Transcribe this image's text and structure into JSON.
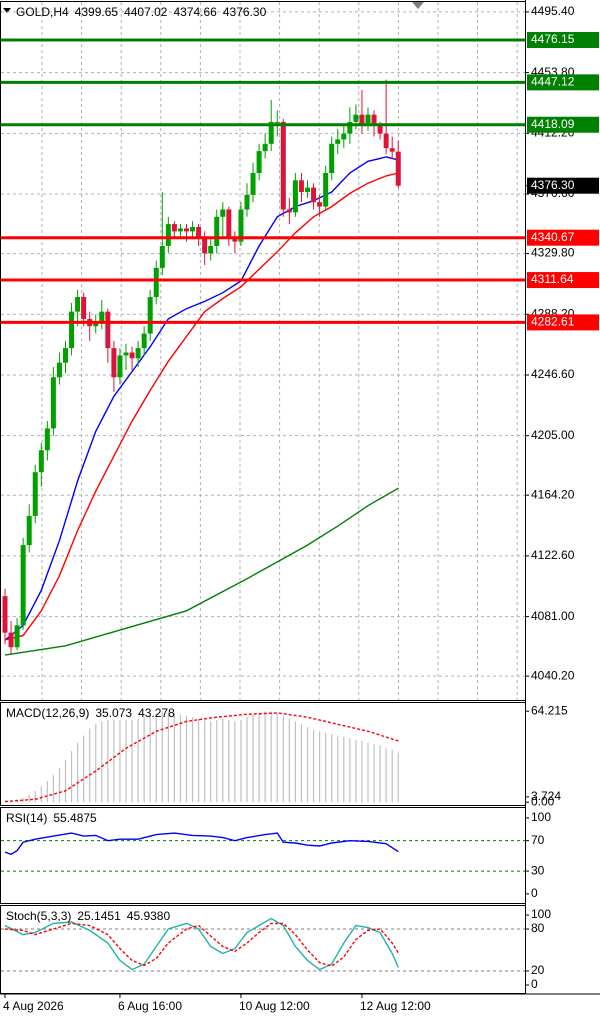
{
  "chart_data": [
    {
      "type": "candlestick",
      "title": "GOLD,H4",
      "legend_values": {
        "values": [
          4399.65,
          4407.02,
          4374.66,
          4376.3
        ],
        "value_labels": [
          "4399.65",
          "4407.02",
          "4374.66",
          "4376.30"
        ]
      },
      "categories": [
        "4 Aug 2026",
        null,
        null,
        null,
        null,
        null,
        null,
        null,
        null,
        null,
        null,
        null,
        null,
        null,
        null,
        null,
        null,
        null,
        null,
        "6 Aug 16:00",
        null,
        null,
        null,
        null,
        null,
        null,
        null,
        null,
        null,
        null,
        null,
        null,
        null,
        null,
        null,
        null,
        null,
        null,
        null,
        "10 Aug 12:00",
        null,
        null,
        null,
        null,
        null,
        null,
        null,
        null,
        null,
        null,
        null,
        null,
        null,
        null,
        null,
        null,
        null,
        null,
        null,
        "12 Aug 12:00",
        null,
        null,
        null,
        null,
        null,
        null
      ],
      "ohlc": [
        [
          4095,
          4100,
          4062,
          4070
        ],
        [
          4070,
          4078,
          4055,
          4060
        ],
        [
          4060,
          4080,
          4058,
          4075
        ],
        [
          4075,
          4135,
          4072,
          4130
        ],
        [
          4130,
          4158,
          4125,
          4150
        ],
        [
          4150,
          4185,
          4145,
          4180
        ],
        [
          4180,
          4200,
          4170,
          4195
        ],
        [
          4195,
          4215,
          4188,
          4210
        ],
        [
          4210,
          4252,
          4205,
          4245
        ],
        [
          4245,
          4262,
          4240,
          4255
        ],
        [
          4255,
          4270,
          4248,
          4265
        ],
        [
          4265,
          4296,
          4260,
          4290
        ],
        [
          4290,
          4305,
          4280,
          4300
        ],
        [
          4300,
          4303,
          4280,
          4285
        ],
        [
          4285,
          4290,
          4270,
          4280
        ],
        [
          4280,
          4288,
          4275,
          4282
        ],
        [
          4282,
          4298,
          4278,
          4290
        ],
        [
          4290,
          4292,
          4255,
          4265
        ],
        [
          4265,
          4270,
          4235,
          4245
        ],
        [
          4245,
          4265,
          4240,
          4260
        ],
        [
          4260,
          4268,
          4250,
          4262
        ],
        [
          4262,
          4266,
          4250,
          4258
        ],
        [
          4258,
          4270,
          4252,
          4265
        ],
        [
          4265,
          4280,
          4260,
          4275
        ],
        [
          4275,
          4305,
          4270,
          4300
        ],
        [
          4300,
          4325,
          4295,
          4320
        ],
        [
          4320,
          4372,
          4315,
          4335
        ],
        [
          4335,
          4355,
          4330,
          4350
        ],
        [
          4350,
          4352,
          4340,
          4345
        ],
        [
          4345,
          4350,
          4340,
          4347
        ],
        [
          4347,
          4350,
          4338,
          4345
        ],
        [
          4345,
          4352,
          4340,
          4348
        ],
        [
          4348,
          4350,
          4335,
          4340
        ],
        [
          4340,
          4345,
          4322,
          4330
        ],
        [
          4330,
          4340,
          4325,
          4335
        ],
        [
          4335,
          4360,
          4330,
          4355
        ],
        [
          4355,
          4365,
          4340,
          4360
        ],
        [
          4360,
          4362,
          4335,
          4340
        ],
        [
          4340,
          4345,
          4330,
          4338
        ],
        [
          4338,
          4365,
          4335,
          4360
        ],
        [
          4360,
          4378,
          4355,
          4370
        ],
        [
          4370,
          4392,
          4365,
          4385
        ],
        [
          4385,
          4405,
          4380,
          4400
        ],
        [
          4400,
          4412,
          4395,
          4405
        ],
        [
          4405,
          4435,
          4400,
          4420
        ],
        [
          4420,
          4428,
          4410,
          4420
        ],
        [
          4420,
          4422,
          4355,
          4360
        ],
        [
          4360,
          4368,
          4350,
          4358
        ],
        [
          4358,
          4385,
          4355,
          4380
        ],
        [
          4380,
          4385,
          4365,
          4372
        ],
        [
          4372,
          4380,
          4368,
          4375
        ],
        [
          4375,
          4378,
          4360,
          4365
        ],
        [
          4365,
          4370,
          4355,
          4362
        ],
        [
          4362,
          4390,
          4360,
          4385
        ],
        [
          4385,
          4410,
          4380,
          4405
        ],
        [
          4405,
          4415,
          4398,
          4408
        ],
        [
          4408,
          4418,
          4402,
          4412
        ],
        [
          4412,
          4430,
          4405,
          4420
        ],
        [
          4420,
          4432,
          4415,
          4425
        ],
        [
          4425,
          4442,
          4412,
          4418
        ],
        [
          4418,
          4430,
          4414,
          4425
        ],
        [
          4425,
          4428,
          4410,
          4418
        ],
        [
          4418,
          4420,
          4408,
          4412
        ],
        [
          4412,
          4449,
          4398,
          4402
        ],
        [
          4402,
          4410,
          4395,
          4399.65
        ],
        [
          4399.65,
          4407.02,
          4374.66,
          4376.3
        ]
      ],
      "up_color": "#00a000",
      "down_color": "#dc143c",
      "series": [
        {
          "color": "#0000ff",
          "x": [
            0,
            3,
            6,
            9,
            12,
            15,
            18,
            21,
            24,
            27,
            30,
            33,
            36,
            39,
            42,
            45,
            48,
            51,
            54,
            57,
            60,
            63,
            65
          ],
          "values": [
            4064.8,
            4075,
            4099,
            4133,
            4174,
            4208,
            4232,
            4249,
            4266,
            4285,
            4292,
            4297,
            4303,
            4311,
            4335,
            4355,
            4362,
            4366,
            4372,
            4385,
            4393,
            4396,
            4394
          ]
        },
        {
          "color": "#ff0000",
          "x": [
            0,
            3,
            6,
            9,
            12,
            15,
            18,
            21,
            24,
            27,
            30,
            33,
            36,
            39,
            42,
            45,
            48,
            51,
            54,
            57,
            60,
            63,
            65
          ],
          "values": [
            4065,
            4068,
            4085,
            4109,
            4140,
            4167,
            4191,
            4215,
            4236,
            4256,
            4273,
            4290,
            4299,
            4307,
            4319,
            4331,
            4344,
            4355,
            4362,
            4371,
            4378,
            4383,
            4385
          ]
        },
        {
          "color": "#008000",
          "x": [
            0,
            10,
            20,
            30,
            40,
            50,
            55,
            60,
            65
          ],
          "values": [
            4054.6,
            4061,
            4073,
            4085,
            4107,
            4130,
            4143,
            4157,
            4169
          ]
        }
      ],
      "levels": [
        {
          "value": 4476.15,
          "color": "#008000"
        },
        {
          "value": 4447.12,
          "color": "#008000"
        },
        {
          "value": 4418.09,
          "color": "#008000"
        },
        {
          "value": 4340.67,
          "color": "#ff0000"
        },
        {
          "value": 4311.64,
          "color": "#ff0000"
        },
        {
          "value": 4282.61,
          "color": "#ff0000"
        }
      ],
      "last_price": {
        "value": 4376.3,
        "label": "4376.30"
      },
      "ylim": [
        4023.85,
        4502.2
      ],
      "yticks": [
        {
          "value": 4495.4,
          "label": "4495.40"
        },
        {
          "value": 4453.8,
          "label": "4453.80"
        },
        {
          "value": 4412.2,
          "label": "4412.20"
        },
        {
          "value": 4370.6,
          "label": "4370.60"
        },
        {
          "value": 4329.8,
          "label": "4329.80"
        },
        {
          "value": 4288.2,
          "label": "4288.20"
        },
        {
          "value": 4246.6,
          "label": "4246.60"
        },
        {
          "value": 4205,
          "label": "4205.00"
        },
        {
          "value": 4164.2,
          "label": "4164.20"
        },
        {
          "value": 4122.6,
          "label": "4122.60"
        },
        {
          "value": 4081,
          "label": "4081.00"
        },
        {
          "value": 4040.2,
          "label": "4040.20"
        }
      ],
      "grid": true
    },
    {
      "type": "bar",
      "title": "MACD(12,26,9)",
      "values": [
        0.5,
        1,
        2,
        3,
        5,
        8,
        11,
        15,
        19,
        24,
        30,
        36,
        42,
        47,
        52,
        55,
        57,
        58,
        58,
        58,
        58,
        58,
        59,
        60,
        61,
        63,
        64,
        64,
        63,
        62,
        61,
        60,
        59,
        58,
        57,
        58,
        59,
        58,
        57,
        58,
        60,
        62,
        63,
        64,
        64,
        63,
        61,
        59,
        57,
        55,
        53,
        51,
        50,
        49,
        48,
        47,
        46,
        45,
        44,
        43,
        42,
        41,
        40,
        38,
        37,
        35.073
      ],
      "color": "#c0c0c0",
      "series": [
        {
          "color": "#ff0000",
          "style": "dashed",
          "x": [
            0,
            5,
            10,
            15,
            20,
            25,
            30,
            35,
            40,
            45,
            50,
            55,
            60,
            65
          ],
          "values": [
            0.5,
            2,
            8,
            22,
            38,
            50,
            57,
            60,
            62,
            63,
            60,
            55,
            50,
            43.278
          ]
        }
      ],
      "ylim": [
        -2,
        70
      ],
      "yticks": [
        64.215,
        3.724,
        {
          "value": 0,
          "label": "0.00"
        }
      ]
    },
    {
      "type": "line",
      "title": "RSI(14)",
      "series": [
        {
          "color": "#0000ff",
          "x": [
            0,
            1,
            2,
            3,
            5,
            8,
            11,
            13,
            15,
            17,
            19,
            22,
            25,
            28,
            31,
            34,
            36,
            38,
            40,
            43,
            45,
            46,
            48,
            50,
            52,
            54,
            57,
            60,
            63,
            65
          ],
          "values": [
            55,
            52,
            57,
            68,
            72,
            76,
            80,
            76,
            77,
            70,
            72,
            72,
            78,
            80,
            77,
            76,
            74,
            70,
            74,
            78,
            80,
            68,
            67,
            64,
            63,
            67,
            70,
            69,
            66,
            55.4875
          ]
        }
      ],
      "levels": [
        70,
        30
      ],
      "level_color": "#008000",
      "ylim": [
        -12,
        113
      ],
      "yticks": [
        100,
        70,
        30,
        0
      ]
    },
    {
      "type": "line",
      "title": "Stoch(5,3,3)",
      "series": [
        {
          "color": "#20b2aa",
          "x": [
            0,
            3,
            5,
            8,
            11,
            14,
            17,
            19,
            21,
            23,
            25,
            27,
            30,
            32,
            34,
            36,
            38,
            40,
            42,
            44,
            46,
            48,
            50,
            52,
            54,
            56,
            58,
            60,
            62,
            64,
            65
          ],
          "values": [
            85,
            72,
            75,
            88,
            90,
            78,
            60,
            35,
            22,
            30,
            55,
            80,
            88,
            80,
            55,
            45,
            52,
            75,
            85,
            95,
            85,
            55,
            35,
            22,
            30,
            60,
            85,
            82,
            75,
            45,
            25.1451
          ]
        },
        {
          "color": "#ff0000",
          "style": "dashed",
          "x": [
            0,
            3,
            5,
            8,
            11,
            14,
            17,
            19,
            21,
            23,
            25,
            27,
            30,
            32,
            34,
            36,
            38,
            40,
            42,
            44,
            46,
            48,
            50,
            52,
            54,
            56,
            58,
            60,
            62,
            64,
            65
          ],
          "values": [
            80,
            78,
            72,
            80,
            88,
            85,
            72,
            52,
            35,
            28,
            38,
            60,
            80,
            85,
            70,
            55,
            48,
            60,
            75,
            88,
            88,
            72,
            50,
            32,
            27,
            40,
            65,
            78,
            80,
            60,
            45.938
          ],
          "value_labels": [
            null,
            null,
            null,
            null,
            null,
            null,
            null,
            null,
            null,
            null,
            null,
            null,
            null,
            null,
            null,
            null,
            null,
            null,
            null,
            null,
            null,
            null,
            null,
            null,
            null,
            null,
            null,
            null,
            null,
            null,
            "45.9380"
          ]
        }
      ],
      "levels": [
        80,
        20
      ],
      "level_color": "#808080",
      "ylim": [
        -10,
        112.9
      ],
      "yticks": [
        100,
        80,
        20,
        0
      ]
    }
  ]
}
